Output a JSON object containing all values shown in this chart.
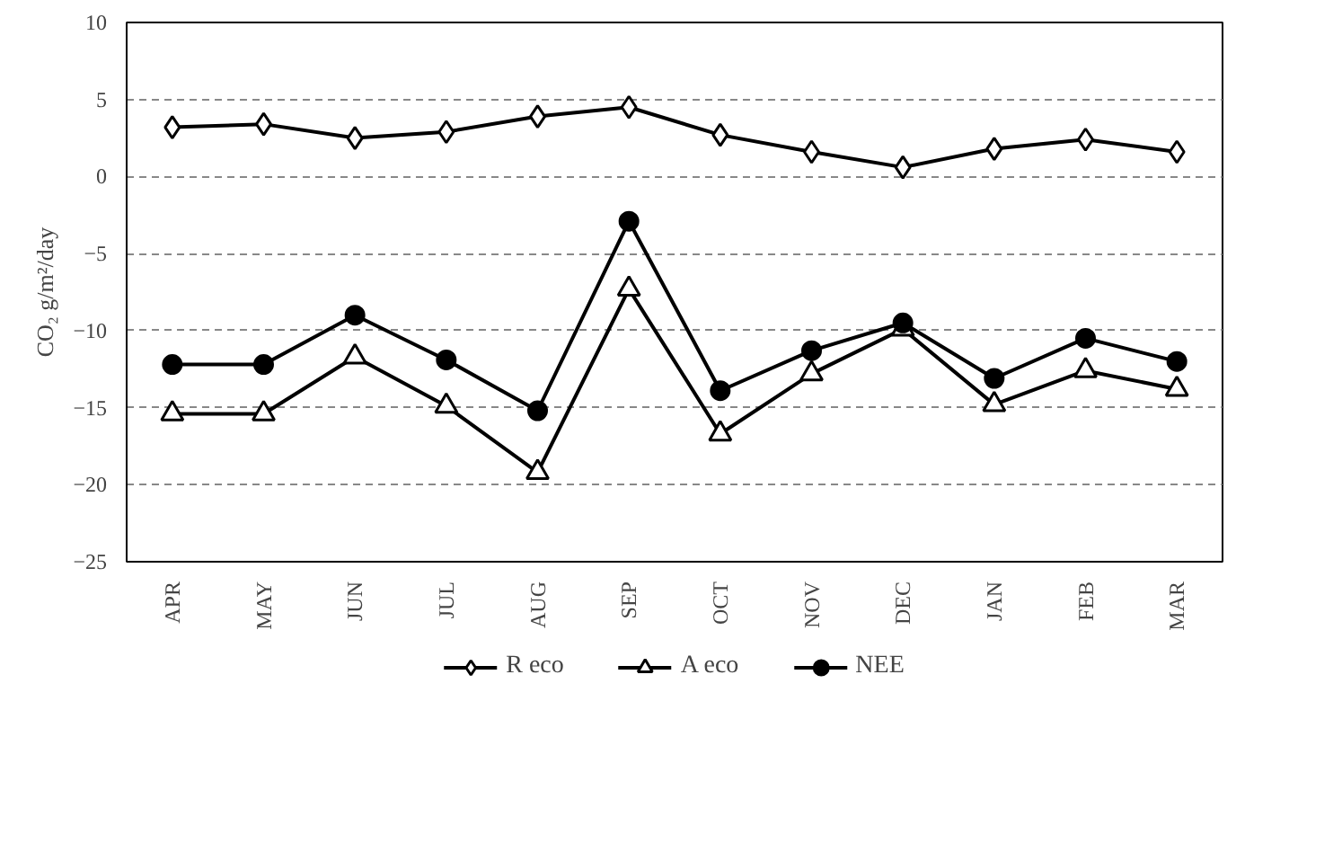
{
  "chart_data": {
    "type": "line",
    "ylabel": "CO₂ g/m²/day",
    "categories": [
      "APR",
      "MAY",
      "JUN",
      "JUL",
      "AUG",
      "SEP",
      "OCT",
      "NOV",
      "DEC",
      "JAN",
      "FEB",
      "MAR"
    ],
    "series": [
      {
        "name": "R eco",
        "color": "#000000",
        "marker": "diamond",
        "values": [
          3.2,
          3.4,
          2.5,
          2.9,
          3.9,
          4.5,
          2.7,
          1.6,
          0.6,
          1.8,
          2.4,
          1.6
        ]
      },
      {
        "name": "A eco",
        "color": "#000000",
        "marker": "triangle",
        "values": [
          -15.4,
          -15.4,
          -11.7,
          -14.9,
          -19.2,
          -7.3,
          -16.7,
          -12.8,
          -9.9,
          -14.8,
          -12.6,
          -13.8
        ]
      },
      {
        "name": "NEE",
        "color": "#000000",
        "marker": "circle",
        "values": [
          -12.2,
          -12.2,
          -9.0,
          -11.9,
          -15.2,
          -2.9,
          -13.9,
          -11.3,
          -9.5,
          -13.1,
          -10.5,
          -12.0
        ]
      }
    ],
    "ylim": [
      -25,
      10
    ],
    "yticks": [
      -25,
      -20,
      -15,
      -10,
      -5,
      0,
      5,
      10
    ],
    "grid": "y",
    "legend": "bottom",
    "line_style": "solid"
  }
}
